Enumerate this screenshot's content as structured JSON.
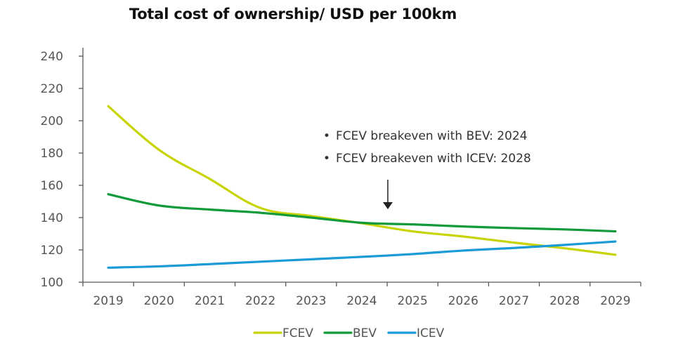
{
  "chart_data": {
    "type": "line",
    "title": "Total cost of ownership/ USD per 100km",
    "xlabel": "",
    "ylabel": "",
    "categories": [
      "2019",
      "2020",
      "2021",
      "2022",
      "2023",
      "2024",
      "2025",
      "2026",
      "2027",
      "2028",
      "2029"
    ],
    "ylim": [
      100,
      240
    ],
    "yticks": [
      100,
      120,
      140,
      160,
      180,
      200,
      220,
      240
    ],
    "grid": false,
    "legend_position": "bottom",
    "series": [
      {
        "name": "FCEV",
        "color": "#c8d400",
        "values": [
          209,
          182,
          164,
          146,
          141,
          136.5,
          131.5,
          128.3,
          124.5,
          121,
          117
        ]
      },
      {
        "name": "BEV",
        "color": "#109a3a",
        "values": [
          154.5,
          147.5,
          145,
          143,
          140,
          136.8,
          135.8,
          134.5,
          133.5,
          132.7,
          131.5
        ]
      },
      {
        "name": "ICEV",
        "color": "#1a9ad6",
        "values": [
          109,
          109.8,
          111.2,
          112.7,
          114.2,
          115.7,
          117.4,
          119.6,
          121.2,
          123.1,
          125.2
        ]
      }
    ],
    "annotations": [
      {
        "bullet": "•",
        "text": "FCEV breakeven with BEV: 2024"
      },
      {
        "bullet": "•",
        "text": "FCEV breakeven with ICEV: 2028"
      }
    ],
    "arrow": {
      "direction": "down",
      "points_to_x": "2024-2025"
    }
  }
}
